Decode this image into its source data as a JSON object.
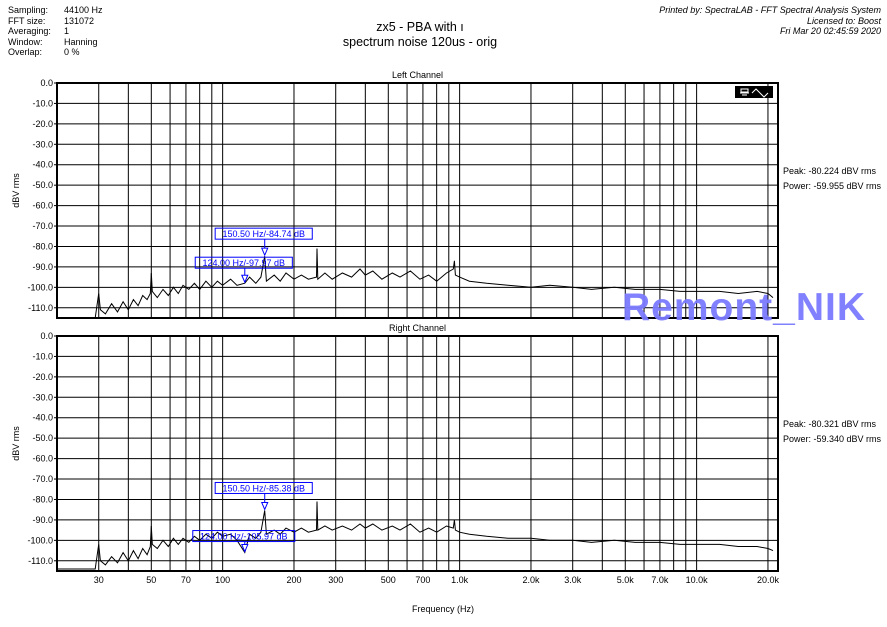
{
  "header": {
    "info": [
      {
        "label": "Sampling:",
        "value": "44100 Hz"
      },
      {
        "label": "FFT size:",
        "value": "131072"
      },
      {
        "label": "Averaging:",
        "value": "1"
      },
      {
        "label": "Window:",
        "value": "Hanning"
      },
      {
        "label": "Overlap:",
        "value": "0 %"
      }
    ],
    "title_line1": "zx5 - PBA with ı",
    "title_line2": "spectrum noise 120us - orig",
    "printed_by": "Printed by: SpectraLAB - FFT Spectral Analysis System",
    "licensed": "Licensed to: Boost",
    "date": "Fri Mar 20 02:45:59 2020"
  },
  "watermark": "Remont_NIK",
  "chart_data": [
    {
      "type": "line",
      "title": "Left Channel",
      "xlabel": "Frequency (Hz)",
      "ylabel": "dBV rms",
      "xscale": "log",
      "xlim": [
        20,
        22050
      ],
      "ylim": [
        -115,
        0
      ],
      "grid": true,
      "yticks": [
        "0.0",
        "-10.0",
        "-20.0",
        "-30.0",
        "-40.0",
        "-50.0",
        "-60.0",
        "-70.0",
        "-80.0",
        "-90.0",
        "-100.0",
        "-110.0"
      ],
      "peak": "Peak: -80.224 dBV rms",
      "power": "Power: -59.955 dBV rms",
      "markers": [
        {
          "freq": 150.5,
          "db": -84.74,
          "label": "150.50 Hz/-84.74 dB"
        },
        {
          "freq": 124.0,
          "db": -97.97,
          "label": "124.00 Hz/-97.97 dB"
        }
      ],
      "series": [
        {
          "color": "#000000",
          "points": [
            [
              20,
              -115
            ],
            [
              29,
              -115
            ],
            [
              30,
              -103
            ],
            [
              30.5,
              -111
            ],
            [
              32,
              -113
            ],
            [
              34,
              -108
            ],
            [
              36,
              -112
            ],
            [
              38,
              -107
            ],
            [
              40,
              -111
            ],
            [
              42,
              -106
            ],
            [
              44,
              -109
            ],
            [
              46,
              -104
            ],
            [
              48,
              -106
            ],
            [
              49.5,
              -103
            ],
            [
              50,
              -93
            ],
            [
              50.5,
              -102
            ],
            [
              53,
              -105
            ],
            [
              56,
              -101
            ],
            [
              59,
              -104
            ],
            [
              62,
              -100
            ],
            [
              65,
              -103
            ],
            [
              68,
              -99
            ],
            [
              72,
              -101
            ],
            [
              76,
              -98
            ],
            [
              80,
              -101
            ],
            [
              85,
              -97
            ],
            [
              90,
              -100
            ],
            [
              95,
              -97
            ],
            [
              100,
              -99
            ],
            [
              108,
              -96
            ],
            [
              115,
              -99
            ],
            [
              124,
              -97.97
            ],
            [
              130,
              -95
            ],
            [
              138,
              -98
            ],
            [
              145,
              -95
            ],
            [
              150.5,
              -84.74
            ],
            [
              153,
              -97
            ],
            [
              165,
              -94
            ],
            [
              175,
              -97
            ],
            [
              185,
              -93
            ],
            [
              200,
              -96
            ],
            [
              215,
              -94
            ],
            [
              230,
              -96
            ],
            [
              249,
              -95
            ],
            [
              250,
              -81
            ],
            [
              252,
              -96
            ],
            [
              270,
              -93
            ],
            [
              290,
              -96
            ],
            [
              320,
              -93
            ],
            [
              350,
              -95
            ],
            [
              380,
              -91
            ],
            [
              400,
              -94
            ],
            [
              430,
              -92
            ],
            [
              470,
              -96
            ],
            [
              520,
              -93
            ],
            [
              560,
              -95
            ],
            [
              620,
              -92
            ],
            [
              680,
              -96
            ],
            [
              740,
              -94
            ],
            [
              800,
              -97
            ],
            [
              880,
              -93
            ],
            [
              940,
              -91
            ],
            [
              950,
              -87
            ],
            [
              960,
              -94
            ],
            [
              1000,
              -95
            ],
            [
              1100,
              -97
            ],
            [
              1300,
              -98
            ],
            [
              1600,
              -99
            ],
            [
              2000,
              -100
            ],
            [
              2400,
              -99
            ],
            [
              3000,
              -100
            ],
            [
              3600,
              -101
            ],
            [
              4500,
              -100
            ],
            [
              5500,
              -101
            ],
            [
              7000,
              -101
            ],
            [
              8500,
              -102
            ],
            [
              10000,
              -102
            ],
            [
              12500,
              -102
            ],
            [
              15000,
              -103
            ],
            [
              18000,
              -102
            ],
            [
              20000,
              -103
            ],
            [
              21000,
              -105
            ]
          ]
        }
      ]
    },
    {
      "type": "line",
      "title": "Right Channel",
      "xlabel": "Frequency (Hz)",
      "ylabel": "dBV rms",
      "xscale": "log",
      "xlim": [
        20,
        22050
      ],
      "ylim": [
        -115,
        0
      ],
      "grid": true,
      "yticks": [
        "0.0",
        "-10.0",
        "-20.0",
        "-30.0",
        "-40.0",
        "-50.0",
        "-60.0",
        "-70.0",
        "-80.0",
        "-90.0",
        "-100.0",
        "-110.0"
      ],
      "xticks": [
        "30",
        "50",
        "70",
        "100",
        "200",
        "300",
        "500",
        "700",
        "1.0k",
        "2.0k",
        "3.0k",
        "5.0k",
        "7.0k",
        "10.0k",
        "20.0k"
      ],
      "peak": "Peak: -80.321 dBV rms",
      "power": "Power: -59.340 dBV rms",
      "markers": [
        {
          "freq": 150.5,
          "db": -85.38,
          "label": "150.50 Hz/-85.38 dB"
        },
        {
          "freq": 124.0,
          "db": -105.97,
          "label": "124.00 Hz/-105.97 dB"
        }
      ],
      "series": [
        {
          "color": "#000000",
          "points": [
            [
              20,
              -114
            ],
            [
              29,
              -114
            ],
            [
              30,
              -102
            ],
            [
              30.5,
              -110
            ],
            [
              32,
              -112
            ],
            [
              34,
              -108
            ],
            [
              36,
              -111
            ],
            [
              38,
              -106
            ],
            [
              40,
              -110
            ],
            [
              42,
              -105
            ],
            [
              44,
              -109
            ],
            [
              46,
              -104
            ],
            [
              48,
              -107
            ],
            [
              49.5,
              -103
            ],
            [
              50,
              -93
            ],
            [
              50.5,
              -102
            ],
            [
              53,
              -104
            ],
            [
              56,
              -100
            ],
            [
              59,
              -103
            ],
            [
              62,
              -99
            ],
            [
              65,
              -102
            ],
            [
              68,
              -99
            ],
            [
              72,
              -101
            ],
            [
              76,
              -98
            ],
            [
              80,
              -100
            ],
            [
              85,
              -97
            ],
            [
              90,
              -99
            ],
            [
              95,
              -96
            ],
            [
              100,
              -98
            ],
            [
              108,
              -97
            ],
            [
              115,
              -100
            ],
            [
              124,
              -105.97
            ],
            [
              130,
              -97
            ],
            [
              138,
              -99
            ],
            [
              145,
              -96
            ],
            [
              150.5,
              -85.38
            ],
            [
              153,
              -97
            ],
            [
              165,
              -95
            ],
            [
              175,
              -97
            ],
            [
              185,
              -94
            ],
            [
              200,
              -96
            ],
            [
              215,
              -94
            ],
            [
              230,
              -96
            ],
            [
              249,
              -95
            ],
            [
              250,
              -81
            ],
            [
              252,
              -95
            ],
            [
              270,
              -93
            ],
            [
              290,
              -95
            ],
            [
              320,
              -93
            ],
            [
              350,
              -95
            ],
            [
              380,
              -92
            ],
            [
              400,
              -94
            ],
            [
              430,
              -92
            ],
            [
              470,
              -95
            ],
            [
              520,
              -93
            ],
            [
              560,
              -95
            ],
            [
              620,
              -92
            ],
            [
              680,
              -96
            ],
            [
              740,
              -94
            ],
            [
              800,
              -96
            ],
            [
              880,
              -93
            ],
            [
              940,
              -94
            ],
            [
              950,
              -90
            ],
            [
              960,
              -95
            ],
            [
              1000,
              -96
            ],
            [
              1100,
              -97
            ],
            [
              1300,
              -98
            ],
            [
              1600,
              -99
            ],
            [
              2000,
              -99
            ],
            [
              2400,
              -100
            ],
            [
              3000,
              -100
            ],
            [
              3600,
              -101
            ],
            [
              4500,
              -100
            ],
            [
              5500,
              -101
            ],
            [
              7000,
              -101
            ],
            [
              8500,
              -102
            ],
            [
              10000,
              -102
            ],
            [
              12500,
              -102
            ],
            [
              15000,
              -103
            ],
            [
              18000,
              -103
            ],
            [
              20000,
              -104
            ],
            [
              21000,
              -105
            ]
          ]
        }
      ]
    }
  ],
  "icons": {
    "toolbar": "graph-settings-icon"
  }
}
